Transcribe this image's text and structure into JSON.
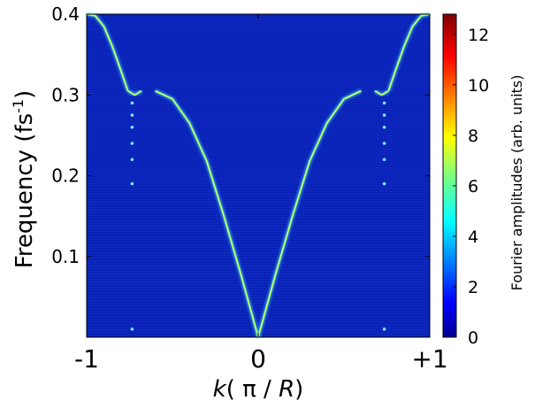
{
  "chart_data": {
    "type": "heatmap",
    "xlabel": "k ( π / R)",
    "xlabel_parts": {
      "var": "k",
      "mid": "( π / ",
      "var2": "R",
      "end": ")"
    },
    "ylabel": "Frequency (fs-1)",
    "ylabel_parts": {
      "base": "Frequency (fs",
      "sup": "-1",
      "end": ")"
    },
    "xlim": [
      -1,
      1
    ],
    "ylim": [
      0,
      0.4
    ],
    "x_ticks": [
      {
        "value": -1,
        "label": "-1"
      },
      {
        "value": 0,
        "label": "0"
      },
      {
        "value": 1,
        "label": "+1"
      }
    ],
    "y_ticks": [
      {
        "value": 0.1,
        "label": "0.1"
      },
      {
        "value": 0.2,
        "label": "0.2"
      },
      {
        "value": 0.3,
        "label": "0.3"
      },
      {
        "value": 0.4,
        "label": "0.4"
      }
    ],
    "colorbar": {
      "label": "Fourier amplitudes (arb. units)",
      "range": [
        0,
        12.8
      ],
      "ticks": [
        {
          "value": 0,
          "label": "0"
        },
        {
          "value": 2,
          "label": "2"
        },
        {
          "value": 4,
          "label": "4"
        },
        {
          "value": 6,
          "label": "6"
        },
        {
          "value": 8,
          "label": "8"
        },
        {
          "value": 10,
          "label": "10"
        },
        {
          "value": 12,
          "label": "12"
        }
      ],
      "colormap": "jet"
    },
    "background_color": "#0a22b8",
    "branches": [
      {
        "name": "acoustic-left",
        "points": [
          [
            -0.6,
            0.305
          ],
          [
            -0.5,
            0.295
          ],
          [
            -0.4,
            0.265
          ],
          [
            -0.3,
            0.218
          ],
          [
            -0.2,
            0.15
          ],
          [
            -0.1,
            0.077
          ],
          [
            0,
            0.0
          ]
        ]
      },
      {
        "name": "acoustic-right",
        "points": [
          [
            0,
            0.0
          ],
          [
            0.1,
            0.077
          ],
          [
            0.2,
            0.15
          ],
          [
            0.3,
            0.218
          ],
          [
            0.4,
            0.265
          ],
          [
            0.5,
            0.295
          ],
          [
            0.6,
            0.305
          ]
        ]
      },
      {
        "name": "outer-left",
        "points": [
          [
            -1.0,
            0.4
          ],
          [
            -0.95,
            0.398
          ],
          [
            -0.9,
            0.385
          ],
          [
            -0.85,
            0.36
          ],
          [
            -0.8,
            0.33
          ],
          [
            -0.76,
            0.305
          ]
        ]
      },
      {
        "name": "outer-right",
        "points": [
          [
            0.76,
            0.305
          ],
          [
            0.8,
            0.33
          ],
          [
            0.85,
            0.36
          ],
          [
            0.9,
            0.385
          ],
          [
            0.95,
            0.398
          ],
          [
            1.0,
            0.4
          ]
        ]
      },
      {
        "name": "inner-left",
        "points": [
          [
            -0.76,
            0.305
          ],
          [
            -0.72,
            0.3
          ],
          [
            -0.68,
            0.305
          ]
        ]
      },
      {
        "name": "inner-right",
        "points": [
          [
            0.68,
            0.305
          ],
          [
            0.72,
            0.3
          ],
          [
            0.76,
            0.305
          ]
        ]
      }
    ],
    "spots": [
      [
        -0.735,
        0.29
      ],
      [
        -0.735,
        0.275
      ],
      [
        -0.735,
        0.26
      ],
      [
        -0.735,
        0.24
      ],
      [
        -0.735,
        0.22
      ],
      [
        -0.735,
        0.19
      ],
      [
        -0.735,
        0.01
      ],
      [
        0.735,
        0.29
      ],
      [
        0.735,
        0.275
      ],
      [
        0.735,
        0.26
      ],
      [
        0.735,
        0.24
      ],
      [
        0.735,
        0.22
      ],
      [
        0.735,
        0.19
      ],
      [
        0.735,
        0.01
      ]
    ]
  }
}
